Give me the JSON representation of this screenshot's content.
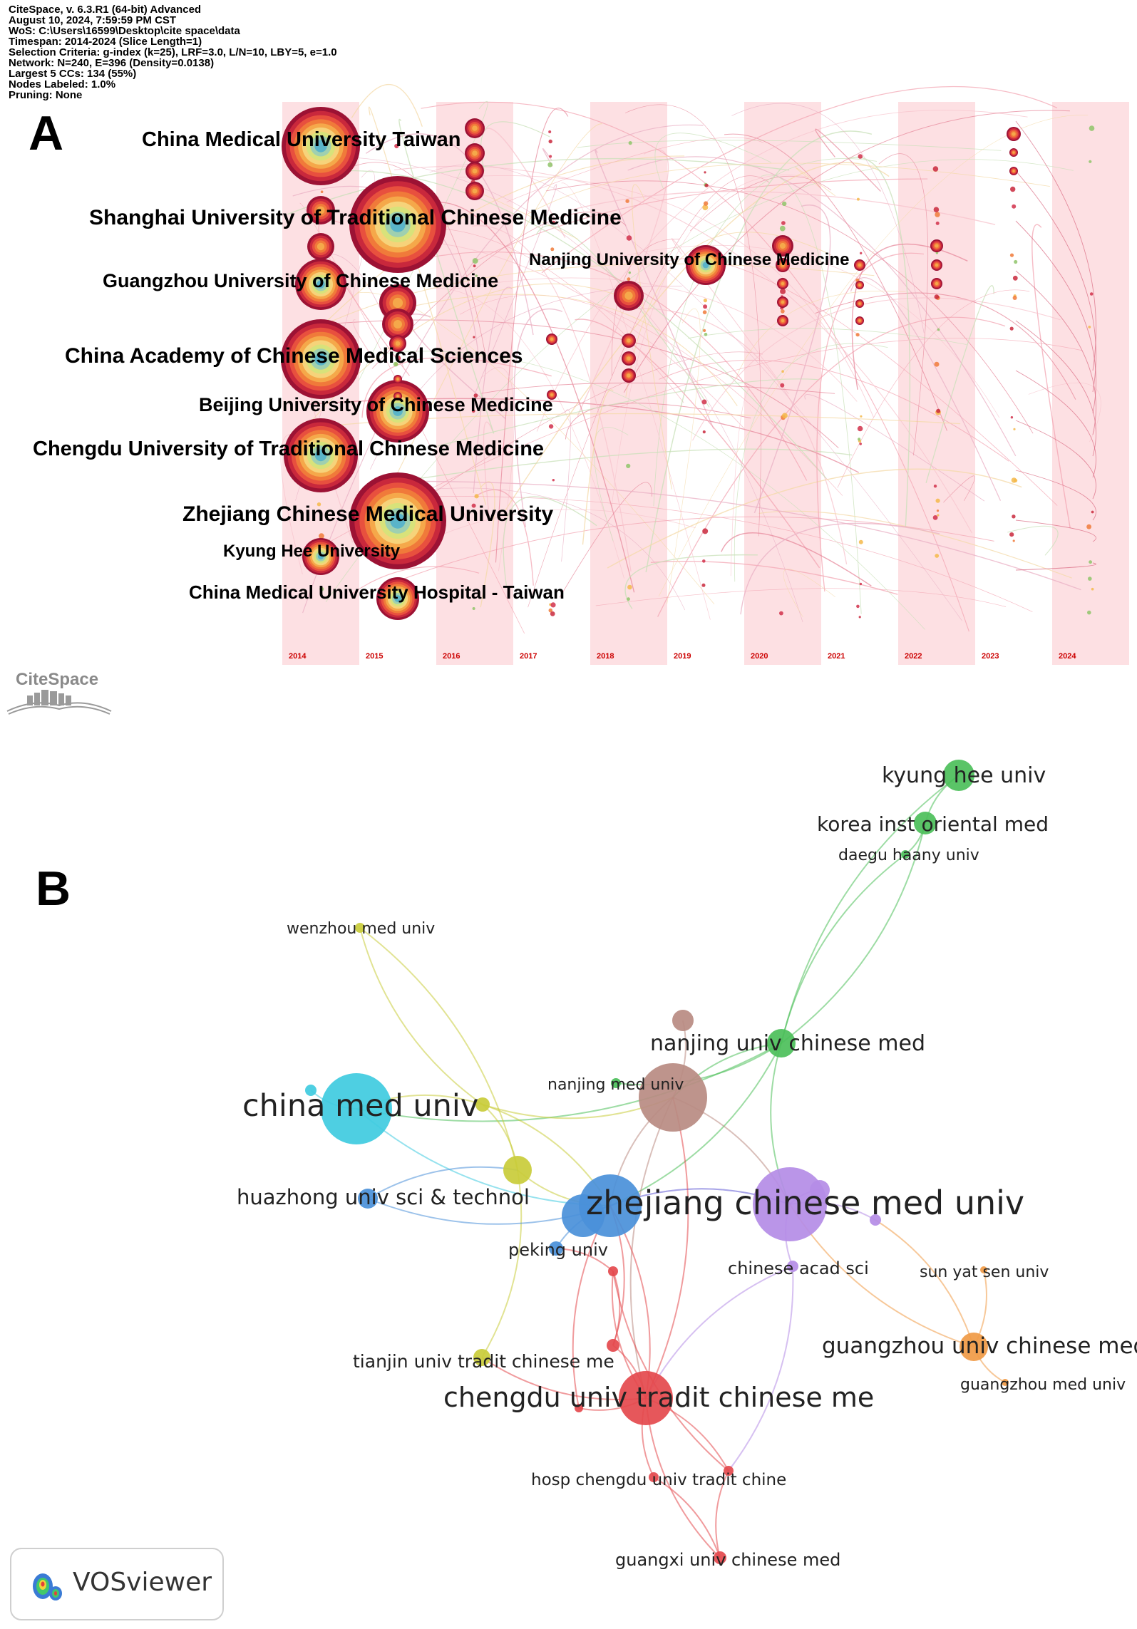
{
  "panel_a": {
    "letter": "A",
    "meta": [
      "CiteSpace, v. 6.3.R1 (64-bit) Advanced",
      "August 10, 2024, 7:59:59 PM CST",
      "WoS: C:\\Users\\16599\\Desktop\\cite space\\data",
      "Timespan: 2014-2024 (Slice Length=1)",
      "Selection Criteria: g-index (k=25), LRF=3.0, L/N=10, LBY=5, e=1.0",
      "Network: N=240, E=396 (Density=0.0138)",
      "Largest 5 CCs: 134 (55%)",
      "Nodes Labeled: 1.0%",
      "Pruning: None"
    ],
    "years": [
      "2014",
      "2015",
      "2016",
      "2017",
      "2018",
      "2019",
      "2020",
      "2021",
      "2022",
      "2023",
      "2024"
    ],
    "institutions": [
      {
        "label": "China Medical University Taiwan",
        "year_index": 0
      },
      {
        "label": "Shanghai University of Traditional Chinese Medicine",
        "year_index": 1
      },
      {
        "label": "Nanjing University of Chinese Medicine",
        "year_index": 5
      },
      {
        "label": "Guangzhou University of Chinese Medicine",
        "year_index": 0
      },
      {
        "label": "China Academy of Chinese Medical Sciences",
        "year_index": 0
      },
      {
        "label": "Beijing University of Chinese Medicine",
        "year_index": 1
      },
      {
        "label": "Chengdu University of Traditional Chinese Medicine",
        "year_index": 0
      },
      {
        "label": "Zhejiang Chinese Medical University",
        "year_index": 1
      },
      {
        "label": "Kyung Hee University",
        "year_index": 0
      },
      {
        "label": "China Medical University Hospital - Taiwan",
        "year_index": 1
      }
    ],
    "logo_text": "CiteSpace"
  },
  "panel_b": {
    "letter": "B",
    "logo_text": "VOSviewer",
    "colors": {
      "cyan": "#3fcbe0",
      "blue": "#4a90d9",
      "yellow": "#c9cc3a",
      "green": "#4cbf5a",
      "brown": "#b98b82",
      "purple": "#b48ce6",
      "red": "#e4494d",
      "orange": "#f09a45"
    },
    "nodes": [
      {
        "label": "kyung hee univ",
        "cluster": "green"
      },
      {
        "label": "korea inst oriental med",
        "cluster": "green"
      },
      {
        "label": "daegu haany univ",
        "cluster": "green"
      },
      {
        "label": "wenzhou med univ",
        "cluster": "yellow"
      },
      {
        "label": "nanjing univ chinese med",
        "cluster": "green"
      },
      {
        "label": "nanjing med univ",
        "cluster": "green"
      },
      {
        "label": "china med univ",
        "cluster": "cyan"
      },
      {
        "label": "huazhong univ sci & technol",
        "cluster": "blue"
      },
      {
        "label": "zhejiang chinese med univ",
        "cluster": "purple"
      },
      {
        "label": "peking univ",
        "cluster": "blue"
      },
      {
        "label": "chinese acad sci",
        "cluster": "purple"
      },
      {
        "label": "sun yat sen univ",
        "cluster": "orange"
      },
      {
        "label": "guangzhou univ chinese med",
        "cluster": "orange"
      },
      {
        "label": "guangzhou med univ",
        "cluster": "orange"
      },
      {
        "label": "tianjin univ tradit chinese me",
        "cluster": "yellow"
      },
      {
        "label": "chengdu univ tradit chinese me",
        "cluster": "red"
      },
      {
        "label": "hosp chengdu univ tradit chine",
        "cluster": "red"
      },
      {
        "label": "guangxi univ chinese med",
        "cluster": "red"
      }
    ]
  }
}
